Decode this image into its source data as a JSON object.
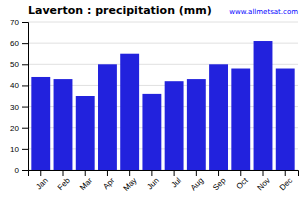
{
  "chart_data": {
    "type": "bar",
    "title": "Laverton : precipitation (mm)",
    "categories": [
      "Jan",
      "Feb",
      "Mar",
      "Apr",
      "May",
      "Jun",
      "Jul",
      "Aug",
      "Sep",
      "Oct",
      "Nov",
      "Dec"
    ],
    "values": [
      44,
      43,
      35,
      50,
      55,
      36,
      42,
      43,
      50,
      48,
      61,
      48
    ],
    "color": "#2222dd",
    "ylim": [
      0,
      70
    ],
    "yticks": [
      0,
      10,
      20,
      30,
      40,
      50,
      60,
      70
    ],
    "grid": true,
    "annotations": [
      "www.allmetsat.com"
    ]
  }
}
